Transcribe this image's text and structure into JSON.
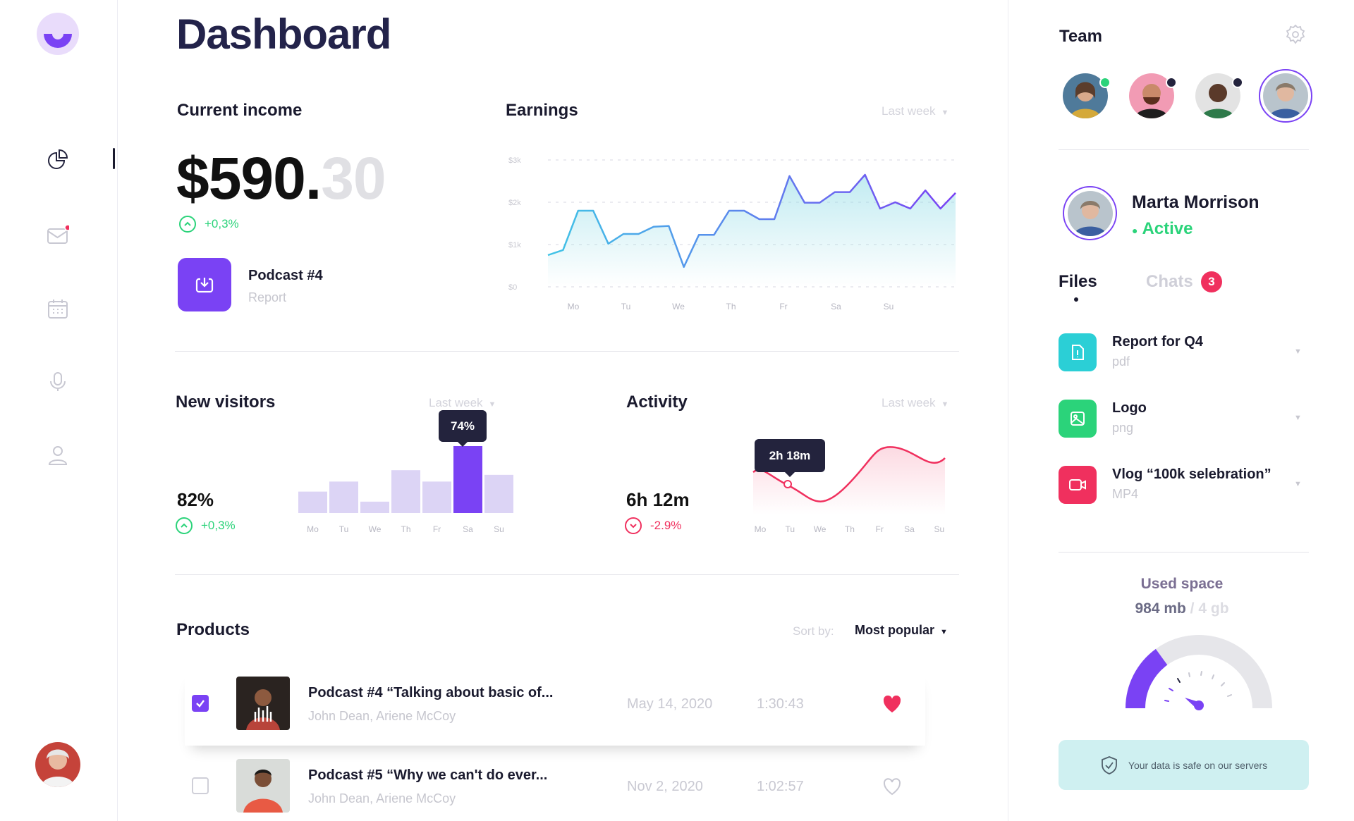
{
  "page": {
    "title": "Dashboard"
  },
  "sidebar": {
    "items": [
      {
        "icon": "pie-chart-icon",
        "active": true
      },
      {
        "icon": "mail-icon",
        "notification": true
      },
      {
        "icon": "calendar-icon"
      },
      {
        "icon": "microphone-icon"
      },
      {
        "icon": "user-icon"
      }
    ]
  },
  "income": {
    "title": "Current income",
    "amount_whole": "$590.",
    "amount_cents": "30",
    "change": "+0,3%",
    "podcast_title": "Podcast #4",
    "podcast_sub": "Report"
  },
  "earnings": {
    "title": "Earnings",
    "period": "Last week",
    "chart_data": {
      "type": "area",
      "y_ticks": [
        "$3k",
        "$2k",
        "$1k",
        "$0"
      ],
      "ylim": [
        0,
        3000
      ],
      "x_ticks": [
        "Mo",
        "Tu",
        "We",
        "Th",
        "Fr",
        "Sa",
        "Su"
      ],
      "values": [
        750,
        870,
        1800,
        1800,
        1020,
        1250,
        1250,
        1420,
        1440,
        470,
        1230,
        1230,
        1800,
        1800,
        1600,
        1600,
        2620,
        1990,
        1990,
        2240,
        2240,
        2650,
        1850,
        2000,
        1850,
        2280,
        1850,
        2220
      ]
    }
  },
  "visitors": {
    "title": "New visitors",
    "period": "Last week",
    "value": "82%",
    "change": "+0,3%",
    "tooltip": "74%",
    "chart_data": {
      "type": "bar",
      "categories": [
        "Mo",
        "Tu",
        "We",
        "Th",
        "Fr",
        "Sa",
        "Su"
      ],
      "values": [
        32,
        47,
        17,
        64,
        47,
        100,
        57
      ],
      "highlight_index": 5
    }
  },
  "activity": {
    "title": "Activity",
    "period": "Last week",
    "value": "6h 12m",
    "change": "-2.9%",
    "tooltip": "2h 18m",
    "chart_data": {
      "type": "line",
      "x_ticks": [
        "Mo",
        "Tu",
        "We",
        "Th",
        "Fr",
        "Sa",
        "Su"
      ]
    }
  },
  "products": {
    "title": "Products",
    "sort_label": "Sort by:",
    "sort_value": "Most popular",
    "rows": [
      {
        "title": "Podcast #4 “Talking about basic of...",
        "authors": "John Dean, Ariene McCoy",
        "date": "May 14, 2020",
        "duration": "1:30:43",
        "checked": true,
        "liked": true
      },
      {
        "title": "Podcast #5 “Why we can't do ever...",
        "authors": "John Dean, Ariene McCoy",
        "date": "Nov 2, 2020",
        "duration": "1:02:57",
        "checked": false,
        "liked": false
      }
    ]
  },
  "team": {
    "title": "Team",
    "members": [
      {
        "status": "online",
        "color": "#2bd37a"
      },
      {
        "status": "offline",
        "color": "#23233d"
      },
      {
        "status": "offline",
        "color": "#23233d"
      },
      {
        "status": "selected"
      }
    ]
  },
  "profile": {
    "name": "Marta Morrison",
    "status": "Active"
  },
  "tabs": {
    "files": "Files",
    "chats": "Chats",
    "chats_count": "3"
  },
  "files": [
    {
      "name": "Report for Q4",
      "type": "pdf",
      "color": "#2bcfd6",
      "icon": "document-icon"
    },
    {
      "name": "Logo",
      "type": "png",
      "color": "#2bd37a",
      "icon": "image-icon"
    },
    {
      "name": "Vlog “100k selebration”",
      "type": "MP4",
      "color": "#f0305e",
      "icon": "video-icon"
    }
  ],
  "storage": {
    "title": "Used space",
    "used": "984 mb",
    "total": " / 4 gb",
    "used_fraction": 0.25,
    "safe_text": "Your data is safe on our servers"
  }
}
